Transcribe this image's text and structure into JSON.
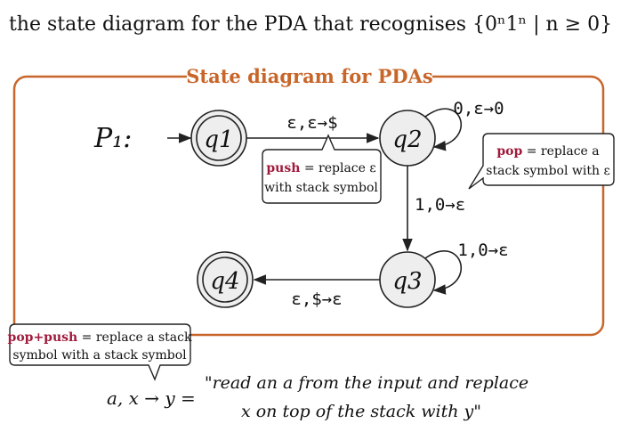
{
  "heading": {
    "text": "the state diagram for the PDA that recognises {0ⁿ1ⁿ | n ≥ 0}"
  },
  "frame": {
    "title": "State diagram for PDAs",
    "accent_color": "#c8662a"
  },
  "machine_label": "P₁:",
  "states": {
    "q1": "q1",
    "q2": "q2",
    "q3": "q3",
    "q4": "q4"
  },
  "transitions": {
    "q1_q2": "ε,ε→$",
    "q2_loop": "0,ε→0",
    "q2_q3": "1,0→ε",
    "q3_loop": "1,0→ε",
    "q3_q4": "ε,$→ε"
  },
  "callouts": {
    "push": {
      "keyword": "push",
      "line1_rest": " = replace ε",
      "line2": "with stack symbol"
    },
    "pop": {
      "keyword": "pop",
      "line1_rest": " = replace a",
      "line2": "stack symbol with ε"
    },
    "poppush": {
      "keyword": "pop+push",
      "line1_rest": " = replace a stack",
      "line2": "symbol with a stack symbol"
    },
    "keyword_color": "#a01a3c"
  },
  "notation": {
    "formula": "a, x → y =",
    "explanation_line1": "\"read an a from the input and replace",
    "explanation_line2": "x on top of the stack with y\""
  }
}
